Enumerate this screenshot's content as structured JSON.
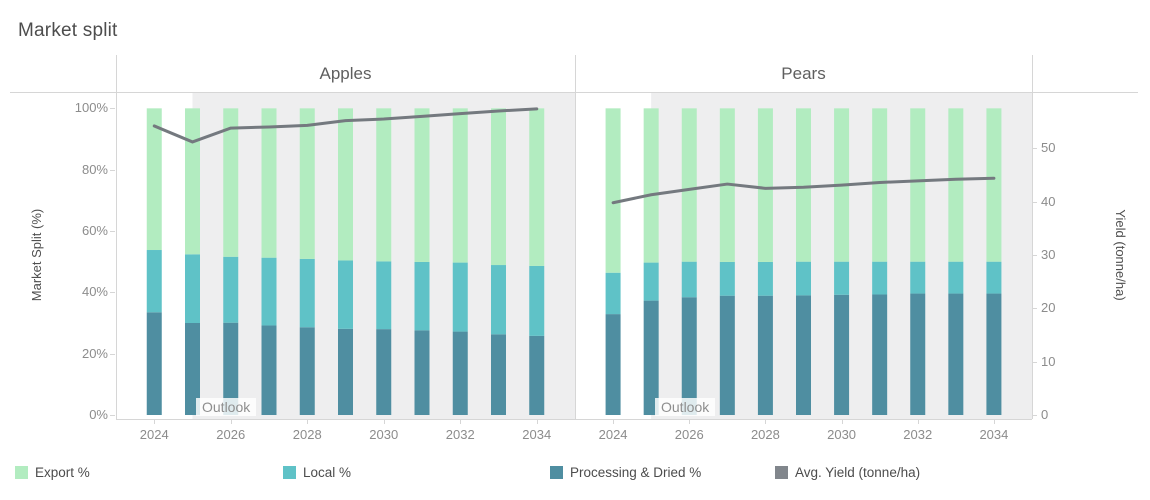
{
  "title": "Market split",
  "outlook_label": "Outlook",
  "axes": {
    "left": {
      "title": "Market Split (%)",
      "ticks": [
        "0%",
        "20%",
        "40%",
        "60%",
        "80%",
        "100%"
      ]
    },
    "right": {
      "title": "Yield (tonne/ha)",
      "ticks": [
        "0",
        "10",
        "20",
        "30",
        "40",
        "50"
      ]
    },
    "x": {
      "ticks": [
        "2024",
        "2026",
        "2028",
        "2030",
        "2032",
        "2034"
      ]
    }
  },
  "legend": {
    "items": [
      {
        "label": "Export %",
        "color": "#b2ecc0"
      },
      {
        "label": "Local %",
        "color": "#5fc2c7"
      },
      {
        "label": "Processing & Dried %",
        "color": "#4f8ea1"
      },
      {
        "label": "Avg. Yield (tonne/ha)",
        "color": "#81868c"
      }
    ]
  },
  "colors": {
    "export": "#b2ecc0",
    "local": "#5fc2c7",
    "processing": "#4f8ea1",
    "yield_line": "#74797f",
    "outlook_band": "#eeeeef",
    "border": "#d6d6d6"
  },
  "chart_data": {
    "type": "combo: stacked bar (percent) + line (yield)",
    "x": [
      2024,
      2025,
      2026,
      2027,
      2028,
      2029,
      2030,
      2031,
      2032,
      2033,
      2034
    ],
    "x_tick_labels_shown": [
      2024,
      2026,
      2028,
      2030,
      2032,
      2034
    ],
    "y_left_label": "Market Split (%)",
    "y_left_range": [
      0,
      100
    ],
    "y_right_label": "Yield (tonne/ha)",
    "y_right_range": [
      0,
      57.5
    ],
    "outlook_band_from_year": 2025,
    "grid": "off",
    "legend_position": "bottom",
    "panels": [
      {
        "title": "Apples",
        "series": [
          {
            "name": "Export %",
            "axis": "left",
            "values": [
              46.2,
              47.6,
              48.4,
              48.7,
              49.1,
              49.6,
              49.9,
              50.1,
              50.3,
              51.1,
              51.4
            ]
          },
          {
            "name": "Local %",
            "axis": "left",
            "values": [
              20.3,
              22.4,
              21.5,
              22.1,
              22.3,
              22.3,
              22.1,
              22.3,
              22.5,
              22.6,
              22.8
            ]
          },
          {
            "name": "Processing & Dried %",
            "axis": "left",
            "values": [
              33.5,
              30.0,
              30.1,
              29.2,
              28.6,
              28.1,
              28.0,
              27.6,
              27.2,
              26.3,
              25.8
            ]
          },
          {
            "name": "Avg. Yield (tonne/ha)",
            "axis": "right",
            "values": [
              54.2,
              51.2,
              53.8,
              54.0,
              54.3,
              55.2,
              55.5,
              56.0,
              56.5,
              57.0,
              57.4
            ]
          }
        ]
      },
      {
        "title": "Pears",
        "series": [
          {
            "name": "Export %",
            "axis": "left",
            "values": [
              53.6,
              50.3,
              50.0,
              50.1,
              50.1,
              50.0,
              50.0,
              50.0,
              50.0,
              50.0,
              50.0
            ]
          },
          {
            "name": "Local %",
            "axis": "left",
            "values": [
              13.5,
              12.4,
              11.6,
              11.0,
              11.0,
              11.0,
              10.8,
              10.7,
              10.4,
              10.4,
              10.4
            ]
          },
          {
            "name": "Processing & Dried %",
            "axis": "left",
            "values": [
              32.9,
              37.3,
              38.4,
              38.9,
              38.9,
              39.0,
              39.2,
              39.3,
              39.6,
              39.6,
              39.6
            ]
          },
          {
            "name": "Avg. Yield (tonne/ha)",
            "axis": "right",
            "values": [
              39.8,
              41.3,
              42.3,
              43.3,
              42.5,
              42.7,
              43.1,
              43.6,
              43.9,
              44.2,
              44.4
            ]
          }
        ]
      }
    ]
  }
}
